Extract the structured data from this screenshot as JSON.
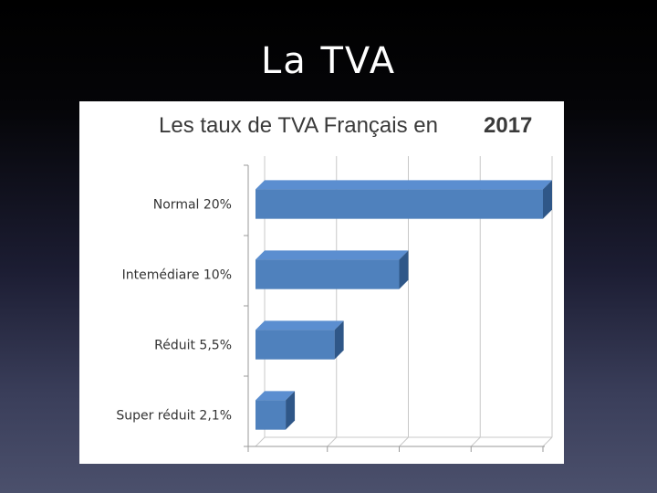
{
  "slide": {
    "title": "La TVA"
  },
  "chart_data": {
    "type": "bar",
    "orientation": "horizontal",
    "title": "Les taux de TVA Français en",
    "title_year": "2017",
    "categories": [
      "Normal 20%",
      "Intemédiare 10%",
      "Réduit 5,5%",
      "Super réduit 2,1%"
    ],
    "values": [
      20,
      10,
      5.5,
      2.1
    ],
    "xlim": [
      0,
      20
    ],
    "x_ticks": [
      0,
      5,
      10,
      15,
      20
    ],
    "tick_labels_shown": false,
    "grid": true,
    "style": "3d",
    "colors": {
      "bar": "#4f81bd",
      "bar_top": "#5b8ed0",
      "bar_side": "#2f5788",
      "grid": "#c8c8c8",
      "axis": "#9a9a9a"
    }
  }
}
